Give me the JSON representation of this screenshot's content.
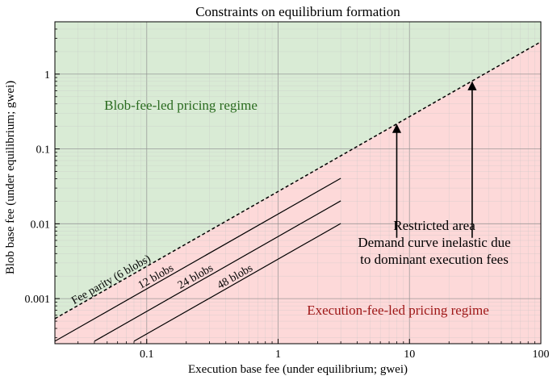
{
  "chart_data": {
    "type": "line",
    "title": "Constraints on equilibrium formation",
    "xlabel": "Execution base fee (under equilibrium; gwei)",
    "ylabel": "Blob base fee (under equilibrium; gwei)",
    "xscale": "log",
    "yscale": "log",
    "xlim": [
      0.02,
      100
    ],
    "ylim": [
      0.00025,
      5
    ],
    "grid": true,
    "x_ticks": [
      0.1,
      1,
      10,
      100
    ],
    "x_tick_labels": [
      "0.1",
      "1",
      "10",
      "100"
    ],
    "y_ticks": [
      0.001,
      0.01,
      0.1,
      1
    ],
    "y_tick_labels": [
      "0.001",
      "0.01",
      "0.1",
      "1"
    ],
    "series": [
      {
        "name": "Fee parity (6 blobs)",
        "style": "dashed",
        "color": "#000000",
        "x": [
          0.02,
          100
        ],
        "y": [
          0.00054,
          2.7
        ]
      },
      {
        "name": "12 blobs",
        "style": "solid",
        "color": "#000000",
        "x": [
          0.02,
          3.0
        ],
        "y": [
          0.00027,
          0.0405
        ]
      },
      {
        "name": "24 blobs",
        "style": "solid",
        "color": "#000000",
        "x": [
          0.04,
          3.0
        ],
        "y": [
          0.00027,
          0.02025
        ]
      },
      {
        "name": "48 blobs",
        "style": "solid",
        "color": "#000000",
        "x": [
          0.08,
          3.0
        ],
        "y": [
          0.00027,
          0.0101
        ]
      }
    ],
    "regions": [
      {
        "label": "Blob-fee-led pricing regime",
        "color": "#d9ebd5",
        "text_color": "#2a6b1f"
      },
      {
        "label": "Execution-fee-led pricing regime",
        "color": "#fdd9d9",
        "text_color": "#9e1616"
      }
    ],
    "annotation": {
      "lines": [
        "Restricted area",
        "Demand curve inelastic due",
        "to dominant execution fees"
      ],
      "arrows": [
        {
          "x": 8,
          "y_from": 0.0065,
          "y_to": 0.21
        },
        {
          "x": 30,
          "y_from": 0.0065,
          "y_to": 0.78
        }
      ]
    }
  }
}
